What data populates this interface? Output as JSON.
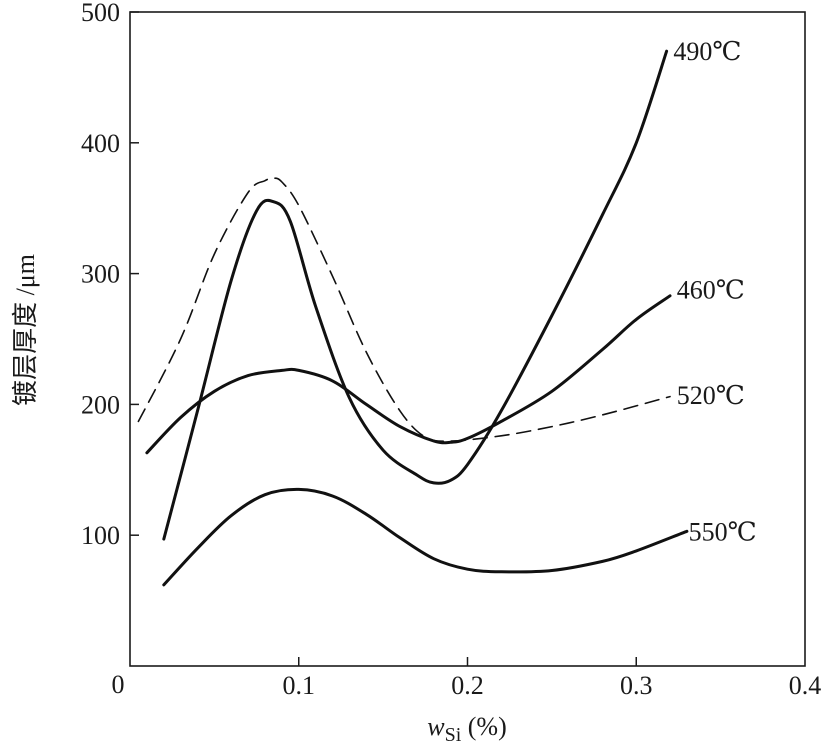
{
  "chart_data": {
    "type": "line",
    "title": "",
    "xlabel_var": "w",
    "xlabel_sub": "Si",
    "xlabel_unit": " (%)",
    "ylabel": "镀层厚度 /μm",
    "xlim": [
      0,
      0.4
    ],
    "ylim": [
      0,
      500
    ],
    "origin_label": "0",
    "x_ticks": [
      0.1,
      0.2,
      0.3,
      0.4
    ],
    "x_tick_labels": [
      "0.1",
      "0.2",
      "0.3",
      "0.4"
    ],
    "y_ticks": [
      100,
      200,
      300,
      400,
      500
    ],
    "y_tick_labels": [
      "100",
      "200",
      "300",
      "400",
      "500"
    ],
    "grid": false,
    "series": [
      {
        "name": "490℃",
        "style": "solid",
        "x": [
          0.02,
          0.04,
          0.06,
          0.075,
          0.085,
          0.095,
          0.11,
          0.13,
          0.15,
          0.17,
          0.18,
          0.19,
          0.2,
          0.22,
          0.25,
          0.28,
          0.3,
          0.318
        ],
        "y": [
          97,
          195,
          295,
          348,
          355,
          340,
          275,
          205,
          165,
          146,
          140,
          142,
          154,
          195,
          268,
          345,
          400,
          470
        ]
      },
      {
        "name": "460℃",
        "style": "solid",
        "x": [
          0.01,
          0.03,
          0.05,
          0.07,
          0.09,
          0.1,
          0.12,
          0.14,
          0.16,
          0.18,
          0.19,
          0.2,
          0.22,
          0.25,
          0.28,
          0.3,
          0.32
        ],
        "y": [
          163,
          190,
          210,
          222,
          226,
          226,
          218,
          200,
          183,
          172,
          171,
          174,
          187,
          210,
          242,
          265,
          283
        ]
      },
      {
        "name": "520℃",
        "style": "dashed",
        "x": [
          0.005,
          0.03,
          0.05,
          0.07,
          0.08,
          0.085,
          0.09,
          0.1,
          0.12,
          0.14,
          0.16,
          0.175,
          0.19,
          0.22,
          0.25,
          0.28,
          0.32
        ],
        "y": [
          187,
          250,
          315,
          362,
          371,
          373,
          370,
          352,
          298,
          240,
          195,
          175,
          172,
          176,
          183,
          192,
          206
        ]
      },
      {
        "name": "550℃",
        "style": "solid",
        "x": [
          0.02,
          0.04,
          0.06,
          0.08,
          0.1,
          0.12,
          0.14,
          0.16,
          0.18,
          0.2,
          0.22,
          0.25,
          0.28,
          0.3,
          0.33
        ],
        "y": [
          62,
          90,
          115,
          131,
          135,
          130,
          116,
          98,
          82,
          74,
          72,
          73,
          80,
          88,
          103
        ]
      }
    ],
    "annotations": [
      {
        "series": "490℃",
        "text": "490℃",
        "x": 0.322,
        "y": 470
      },
      {
        "series": "460℃",
        "text": "460℃",
        "x": 0.324,
        "y": 288
      },
      {
        "series": "520℃",
        "text": "520℃",
        "x": 0.324,
        "y": 207
      },
      {
        "series": "550℃",
        "text": "550℃",
        "x": 0.331,
        "y": 103
      }
    ]
  }
}
